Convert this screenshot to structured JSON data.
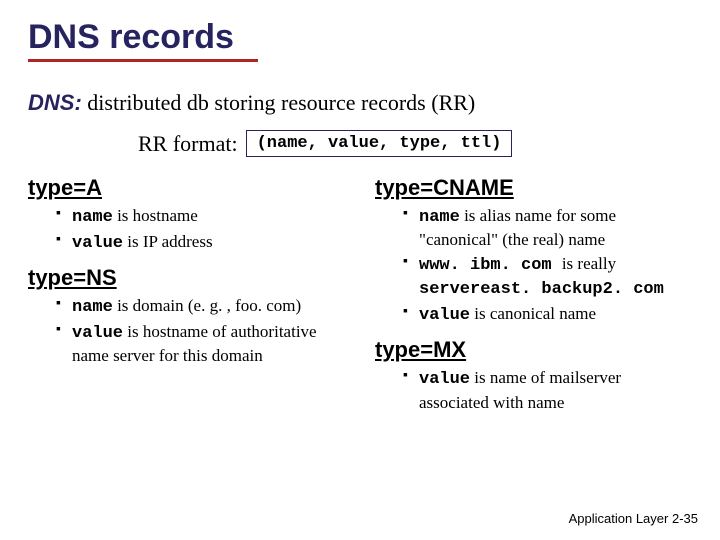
{
  "title": "DNS records",
  "intro": {
    "label": "DNS:",
    "text": "distributed db storing resource records (RR)"
  },
  "rr": {
    "label": "RR format:",
    "tuple": "(name, value, type, ttl)"
  },
  "left": {
    "typeA": {
      "header": "type=A",
      "b1a": "name",
      "b1b": " is hostname",
      "b2a": "value",
      "b2b": " is IP address"
    },
    "typeNS": {
      "header": "type=NS",
      "b1a": "name",
      "b1b": " is domain (e. g. , foo. com)",
      "b2a": "value",
      "b2b": " is hostname of authoritative name server for this domain"
    }
  },
  "right": {
    "typeCNAME": {
      "header": "type=CNAME",
      "b1a": "name",
      "b1b": " is alias name for some \"canonical\" (the real) name",
      "b2a": "www. ibm. com ",
      "b2b": "is really",
      "b2c": "servereast. backup2. com",
      "b3a": "value",
      "b3b": " is canonical name"
    },
    "typeMX": {
      "header": "type=MX",
      "b1a": "value",
      "b1b": " is name of mailserver associated with name"
    }
  },
  "footer": {
    "label": "Application Layer",
    "page": "2-35"
  },
  "colors": {
    "heading": "#26235f",
    "underline": "#b12424",
    "text": "#000000",
    "bg": "#ffffff"
  }
}
